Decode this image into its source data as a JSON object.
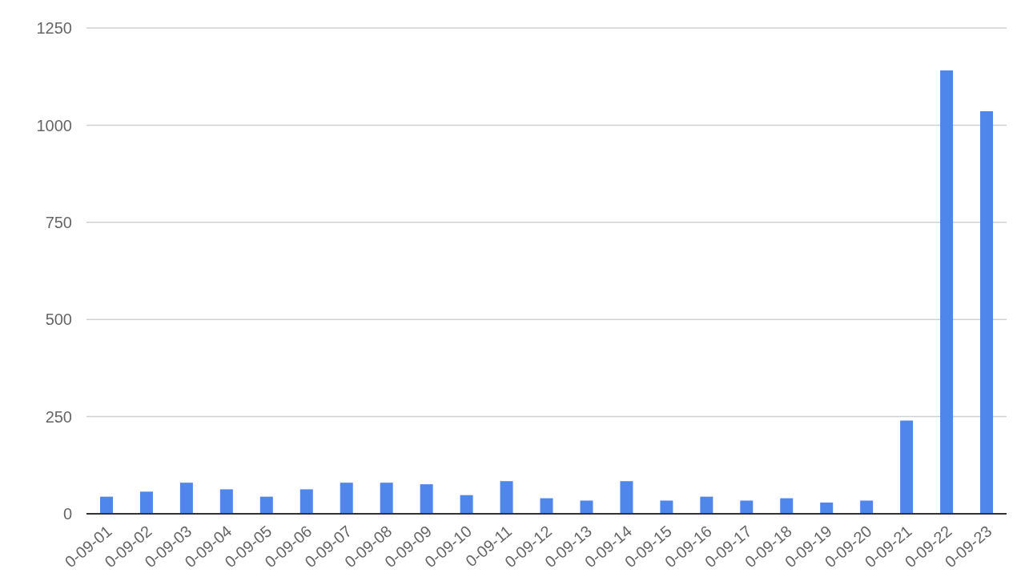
{
  "chart_data": {
    "type": "bar",
    "categories": [
      "0-09-01",
      "0-09-02",
      "0-09-03",
      "0-09-04",
      "0-09-05",
      "0-09-06",
      "0-09-07",
      "0-09-08",
      "0-09-09",
      "0-09-10",
      "0-09-11",
      "0-09-12",
      "0-09-13",
      "0-09-14",
      "0-09-15",
      "0-09-16",
      "0-09-17",
      "0-09-18",
      "0-09-19",
      "0-09-20",
      "0-09-21",
      "0-09-22",
      "0-09-23"
    ],
    "values": [
      44,
      57,
      80,
      63,
      44,
      63,
      80,
      80,
      76,
      48,
      84,
      40,
      34,
      84,
      34,
      44,
      34,
      40,
      29,
      34,
      240,
      1141,
      1036
    ],
    "color": "#4f86ec",
    "ylim": [
      0,
      1250
    ],
    "yticks": [
      0,
      250,
      500,
      750,
      1000,
      1250
    ],
    "grid": "y"
  }
}
